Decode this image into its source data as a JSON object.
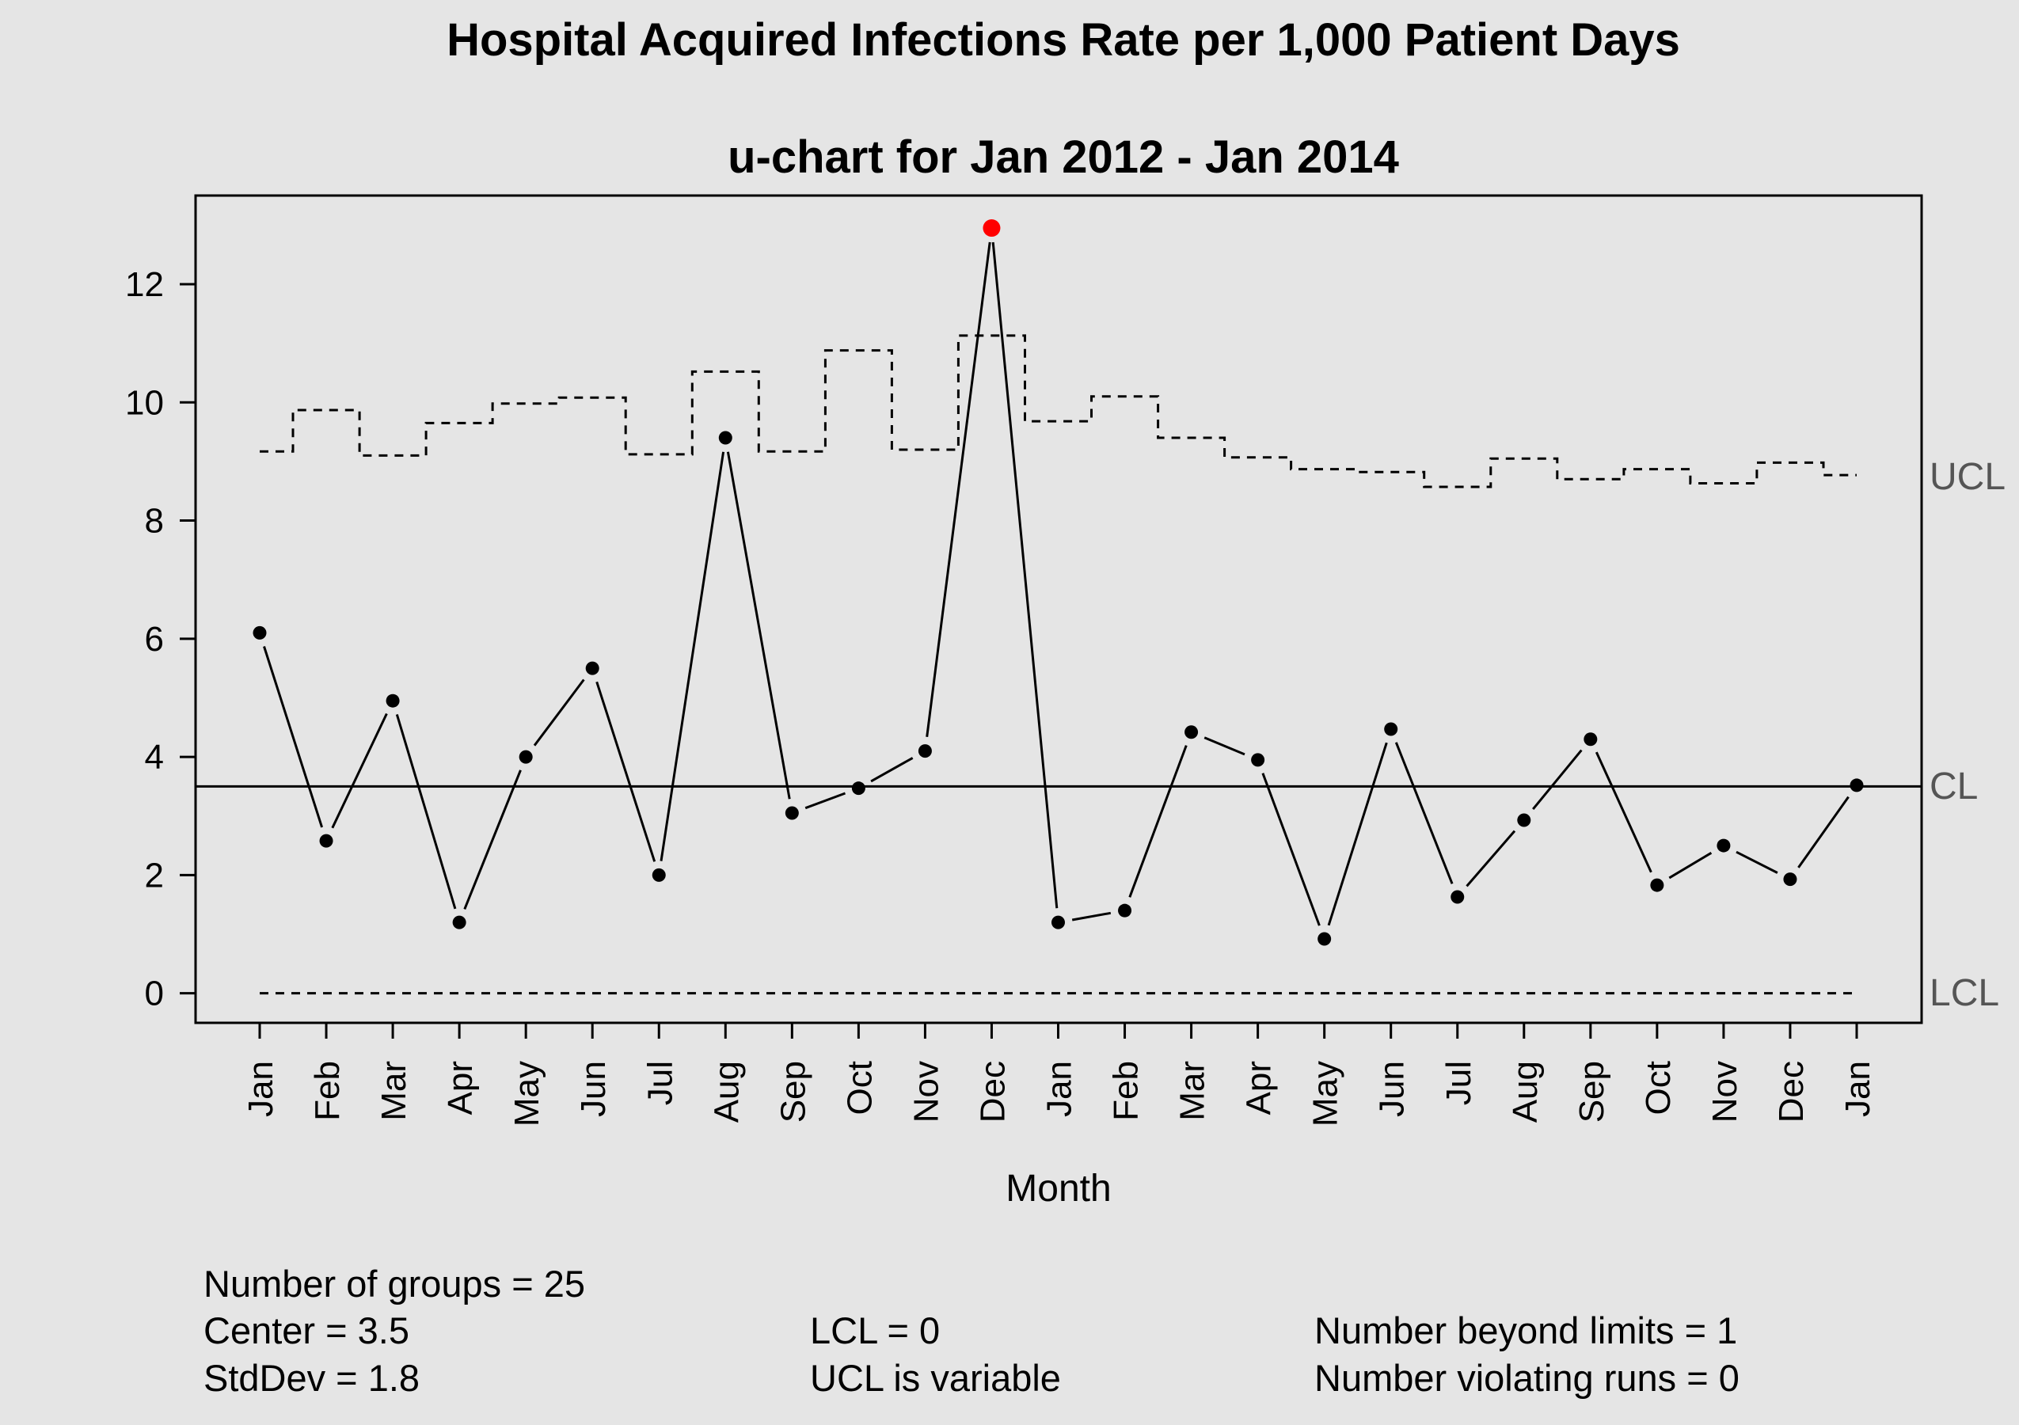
{
  "chart_data": {
    "type": "line",
    "title": "Hospital Acquired Infections Rate per 1,000 Patient Days",
    "subtitle": "u-chart for Jan 2012 - Jan 2014",
    "xlabel": "Month",
    "ylabel": "",
    "ylim": [
      -0.5,
      13.5
    ],
    "yticks": [
      0,
      2,
      4,
      6,
      8,
      10,
      12
    ],
    "categories": [
      "Jan",
      "Feb",
      "Mar",
      "Apr",
      "May",
      "Jun",
      "Jul",
      "Aug",
      "Sep",
      "Oct",
      "Nov",
      "Dec",
      "Jan",
      "Feb",
      "Mar",
      "Apr",
      "May",
      "Jun",
      "Jul",
      "Aug",
      "Sep",
      "Oct",
      "Nov",
      "Dec",
      "Jan"
    ],
    "values": [
      6.1,
      2.58,
      4.95,
      1.2,
      4.0,
      5.5,
      2.0,
      9.4,
      3.05,
      3.47,
      4.1,
      12.95,
      1.2,
      1.4,
      4.42,
      3.95,
      0.92,
      4.47,
      1.63,
      2.93,
      4.3,
      1.83,
      2.5,
      1.93,
      3.52
    ],
    "ucl": [
      9.17,
      9.87,
      9.1,
      9.65,
      9.98,
      10.08,
      9.12,
      10.52,
      9.17,
      10.88,
      9.2,
      11.13,
      9.68,
      10.1,
      9.4,
      9.07,
      8.87,
      8.82,
      8.57,
      9.05,
      8.7,
      8.87,
      8.63,
      8.98,
      8.77
    ],
    "cl": 3.5,
    "lcl": 0,
    "beyond_limits_index": [
      11
    ],
    "limit_labels": {
      "ucl": "UCL",
      "cl": "CL",
      "lcl": "LCL"
    },
    "colors": {
      "point": "#000000",
      "beyond": "#ff0000",
      "line": "#000000",
      "background": "#e5e5e5",
      "label": "#555555"
    }
  },
  "stats": {
    "groups": "Number of groups = 25",
    "center": "Center = 3.5",
    "stddev": "StdDev = 1.8",
    "lcl": "LCL = 0",
    "ucl": "UCL is variable",
    "beyond": "Number beyond limits = 1",
    "runs": "Number violating runs = 0"
  }
}
